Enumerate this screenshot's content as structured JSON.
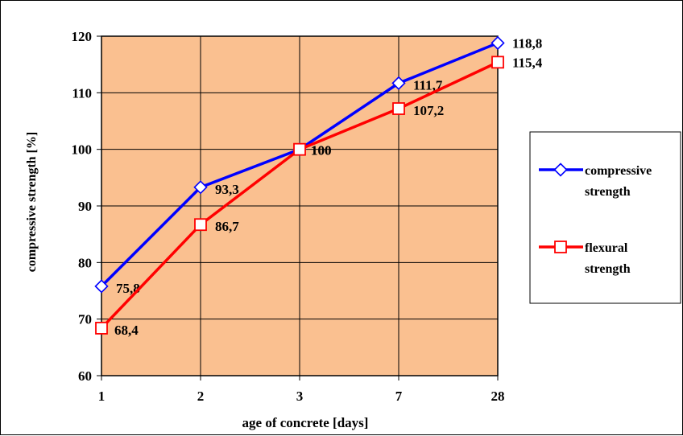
{
  "chart_data": {
    "type": "line",
    "categories": [
      "1",
      "2",
      "3",
      "7",
      "28"
    ],
    "xlabel": "age of concrete [days]",
    "ylabel": "compressive strength [%]",
    "ylim": [
      60,
      120
    ],
    "yticks": [
      60,
      70,
      80,
      90,
      100,
      110,
      120
    ],
    "grid": true,
    "plot_background": "#FAC090",
    "legend_position": "right",
    "series": [
      {
        "name": "compressive strength",
        "name_lines": [
          "compressive",
          "strength"
        ],
        "values": [
          75.8,
          93.3,
          100,
          111.7,
          118.8
        ],
        "labels": [
          "75,8",
          "93,3",
          "100",
          "111,7",
          "118,8"
        ],
        "color": "#0000FF",
        "marker": "diamond"
      },
      {
        "name": "flexural strength",
        "name_lines": [
          "flexural",
          "strength"
        ],
        "values": [
          68.4,
          86.7,
          100,
          107.2,
          115.4
        ],
        "labels": [
          "68,4",
          "86,7",
          "100",
          "107,2",
          "115,4"
        ],
        "color": "#FF0000",
        "marker": "square"
      }
    ]
  }
}
